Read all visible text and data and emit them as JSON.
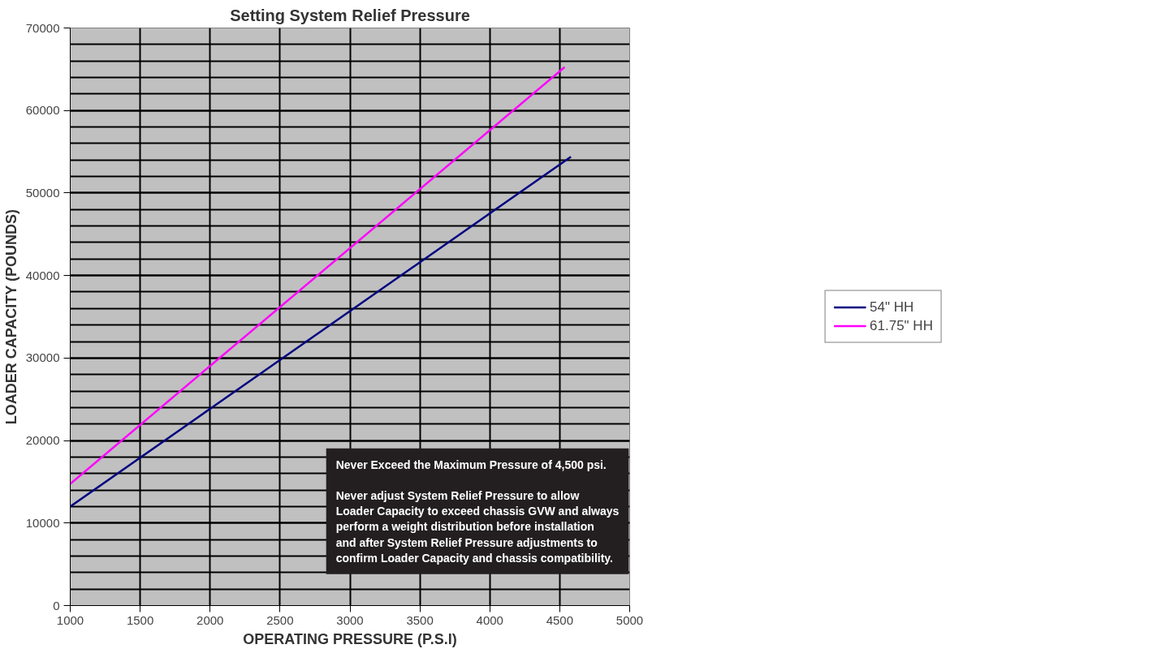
{
  "chart_data": {
    "type": "line",
    "title": "Setting System Relief Pressure",
    "xlabel": "OPERATING PRESSURE (P.S.I)",
    "ylabel": "LOADER CAPACITY (POUNDS)",
    "xlim": [
      1000,
      5000
    ],
    "xticks": [
      1000,
      1500,
      2000,
      2500,
      3000,
      3500,
      4000,
      4500,
      5000
    ],
    "ylim": [
      0,
      70000
    ],
    "yticks": [
      0,
      10000,
      20000,
      30000,
      40000,
      50000,
      60000,
      70000
    ],
    "grid": true,
    "legend": "right",
    "line_style": "solid",
    "marker": "none",
    "series": [
      {
        "name": "54\" HH",
        "color": "#000080",
        "x": [
          1000,
          4580
        ],
        "values": [
          12000,
          54400
        ]
      },
      {
        "name": "61.75\" HH",
        "color": "#ff00ff",
        "x": [
          1000,
          4535
        ],
        "values": [
          14750,
          65250
        ]
      }
    ],
    "annotations": [
      "Never Exceed the Maximum Pressure of 4,500 psi.",
      "Never adjust System Relief Pressure to allow Loader Capacity to exceed chassis GVW and always perform a weight distribution before installation and after System Relief Pressure adjustments to confirm Loader Capacity and chassis compatibility."
    ]
  }
}
